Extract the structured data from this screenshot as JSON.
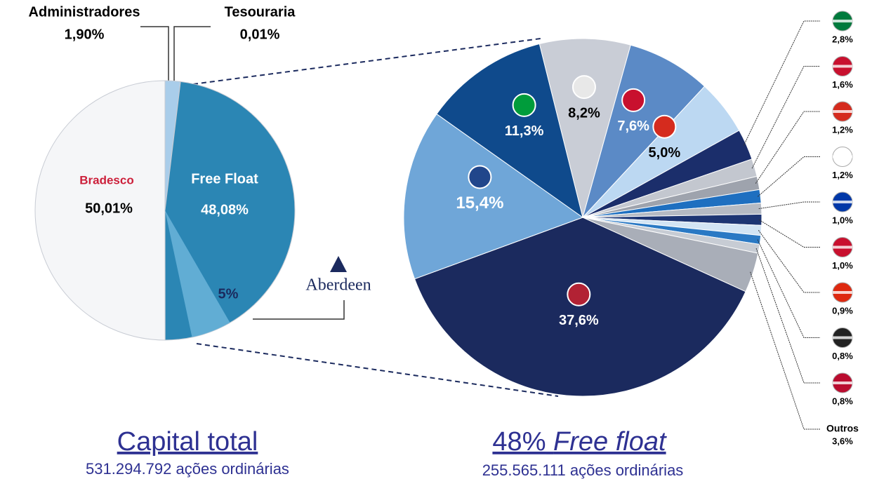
{
  "chart_data": [
    {
      "type": "pie",
      "title": "Capital total",
      "subtitle": "531.294.792 ações ordinárias",
      "categories": [
        "Administradores",
        "Tesouraria",
        "Free Float",
        "Bradesco"
      ],
      "values": [
        1.9,
        0.01,
        48.08,
        50.01
      ],
      "value_labels": [
        "1,90%",
        "0,01%",
        "48,08%",
        "50,01%"
      ],
      "colors": [
        "#a9cdea",
        "#d9dde3",
        "#2b86b4",
        "#f5f6f8"
      ],
      "sub_slice": {
        "name": "Aberdeen",
        "value": 5,
        "value_label": "5%",
        "color": "#6fb6dc"
      }
    },
    {
      "type": "pie",
      "title": "48%",
      "title_emphasis": "Free float",
      "subtitle": "255.565.111 ações ordinárias",
      "categories": [
        null,
        null,
        null,
        null,
        null,
        null,
        null,
        null,
        null,
        null,
        null,
        null,
        "Outros",
        null,
        null,
        null
      ],
      "values": [
        8.2,
        7.6,
        5.0,
        2.8,
        1.6,
        1.2,
        1.2,
        1.0,
        1.0,
        0.9,
        0.8,
        0.8,
        3.6,
        37.6,
        15.4,
        11.3
      ],
      "value_labels": [
        "8,2%",
        "7,6%",
        "5,0%",
        "2,8%",
        "1,6%",
        "1,2%",
        "1,2%",
        "1,0%",
        "1,0%",
        "0,9%",
        "0,8%",
        "0,8%",
        "3,6%",
        "37,6%",
        "15,4%",
        "11,3%"
      ],
      "colors": [
        "#c9cdd6",
        "#5b8ac6",
        "#bcd8f2",
        "#1b2e6b",
        "#c3c7cf",
        "#9ea3ad",
        "#1e6fc0",
        "#b5bac3",
        "#1d3573",
        "#d2e4f4",
        "#2a79c4",
        "#c7ccd4",
        "#a9aeb8",
        "#1b2a5e",
        "#6fa6d8",
        "#0f4a8c"
      ]
    }
  ]
}
